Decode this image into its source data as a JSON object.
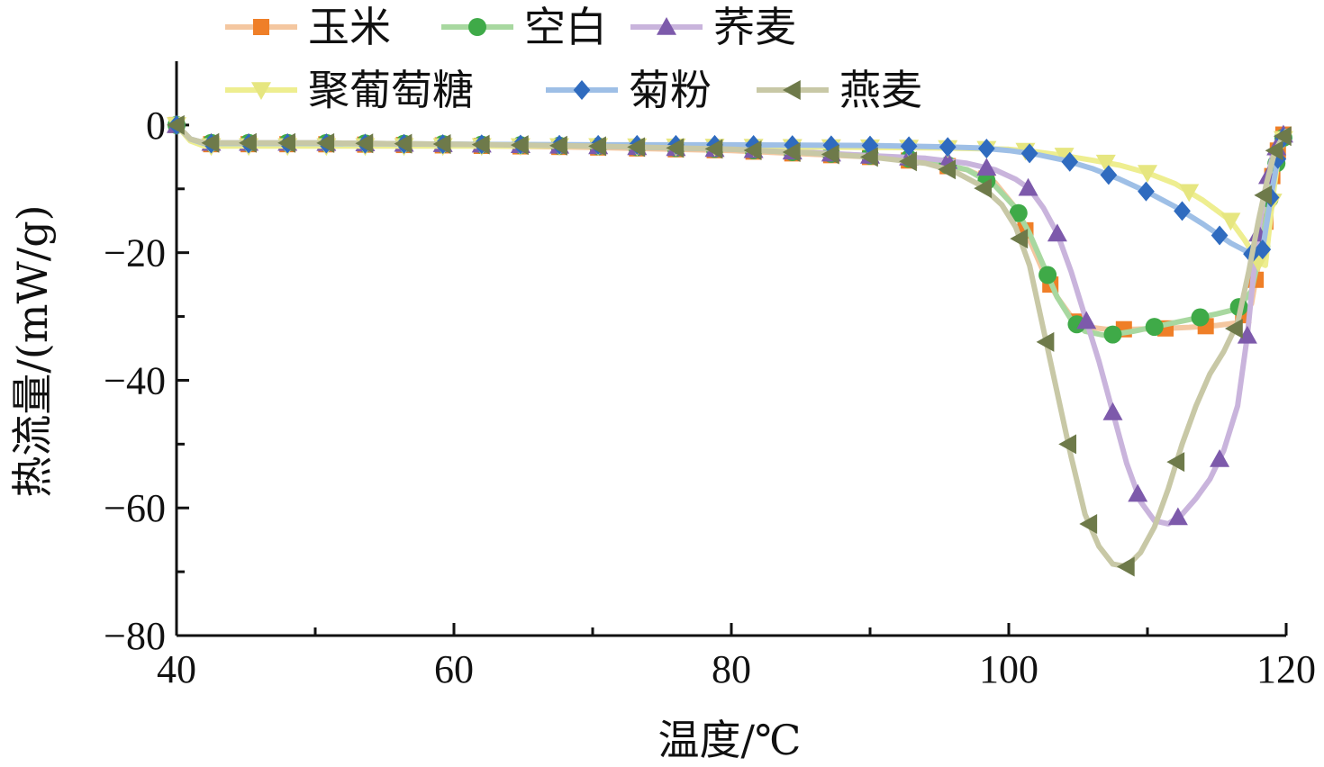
{
  "chart_data": {
    "type": "line",
    "xlabel": "温度/℃",
    "ylabel": "热流量/(mW/g)",
    "xlim": [
      40,
      120
    ],
    "ylim": [
      -80,
      10
    ],
    "xticks": [
      40,
      60,
      80,
      100,
      120
    ],
    "yticks": [
      0,
      -20,
      -40,
      -60,
      -80
    ],
    "legend_position": "top-left",
    "grid": false,
    "series": [
      {
        "name": "玉米",
        "color": "#f4c7a0",
        "marker_color": "#ef7f28",
        "marker": "square",
        "points": [
          [
            40,
            0
          ],
          [
            41,
            -2.2
          ],
          [
            42,
            -3
          ],
          [
            46,
            -3
          ],
          [
            50,
            -3
          ],
          [
            60,
            -3.2
          ],
          [
            70,
            -3.5
          ],
          [
            80,
            -4
          ],
          [
            85,
            -4.5
          ],
          [
            90,
            -5
          ],
          [
            94,
            -5.8
          ],
          [
            97,
            -7
          ],
          [
            99,
            -9
          ],
          [
            100.5,
            -13
          ],
          [
            101.5,
            -18
          ],
          [
            102.5,
            -23
          ],
          [
            103.5,
            -27
          ],
          [
            104.5,
            -30
          ],
          [
            105.5,
            -31.6
          ],
          [
            107,
            -32
          ],
          [
            109,
            -32
          ],
          [
            111,
            -31.9
          ],
          [
            113,
            -31.7
          ],
          [
            115,
            -31.4
          ],
          [
            116.5,
            -31
          ],
          [
            117.5,
            -28
          ],
          [
            118.3,
            -18
          ],
          [
            119,
            -8
          ],
          [
            119.6,
            -2
          ],
          [
            120,
            -1
          ]
        ],
        "marker_x": [
          40,
          42.5,
          45.2,
          48,
          50.8,
          53.6,
          56.4,
          59.2,
          62,
          64.8,
          67.6,
          70.4,
          73.2,
          76,
          78.8,
          81.6,
          84.4,
          87.2,
          90,
          92.8,
          95.6,
          98.4,
          101.2,
          103,
          105,
          108.3,
          111.3,
          114.2,
          116.9,
          117.8,
          118.5,
          119,
          119.4,
          119.8
        ]
      },
      {
        "name": "空白",
        "color": "#a8d8a0",
        "marker_color": "#3faa48",
        "marker": "circle",
        "points": [
          [
            40,
            0
          ],
          [
            41,
            -2.2
          ],
          [
            42,
            -2.8
          ],
          [
            46,
            -2.8
          ],
          [
            50,
            -2.8
          ],
          [
            60,
            -3
          ],
          [
            70,
            -3.3
          ],
          [
            80,
            -3.8
          ],
          [
            85,
            -4.3
          ],
          [
            90,
            -4.8
          ],
          [
            94,
            -5.5
          ],
          [
            97,
            -7
          ],
          [
            99,
            -9.5
          ],
          [
            100.5,
            -13
          ],
          [
            101.5,
            -17
          ],
          [
            102.5,
            -22
          ],
          [
            103.5,
            -27
          ],
          [
            104.5,
            -30.5
          ],
          [
            105.5,
            -32.3
          ],
          [
            107,
            -33
          ],
          [
            109,
            -32.3
          ],
          [
            111,
            -31.4
          ],
          [
            113,
            -30.5
          ],
          [
            115,
            -29.6
          ],
          [
            116.5,
            -28.8
          ],
          [
            117.5,
            -26
          ],
          [
            118.3,
            -18
          ],
          [
            119,
            -9
          ],
          [
            119.6,
            -3
          ],
          [
            120,
            -1
          ]
        ],
        "marker_x": [
          40,
          42.5,
          45.2,
          48,
          50.8,
          53.6,
          56.4,
          59.2,
          62,
          64.8,
          67.6,
          70.4,
          73.2,
          76,
          78.8,
          81.6,
          84.4,
          87.2,
          90,
          92.8,
          95.6,
          98.4,
          100.7,
          102.8,
          104.9,
          107.5,
          110.5,
          113.8,
          116.6,
          118.2,
          118.8,
          119.3,
          119.8
        ]
      },
      {
        "name": "荞麦",
        "color": "#c9b4dc",
        "marker_color": "#7d5aab",
        "marker": "triangle-up",
        "points": [
          [
            40,
            0
          ],
          [
            41,
            -2.2
          ],
          [
            42,
            -2.8
          ],
          [
            46,
            -2.8
          ],
          [
            50,
            -2.8
          ],
          [
            60,
            -3
          ],
          [
            70,
            -3.3
          ],
          [
            80,
            -3.8
          ],
          [
            85,
            -4.2
          ],
          [
            90,
            -4.8
          ],
          [
            94,
            -5.2
          ],
          [
            97,
            -6
          ],
          [
            99,
            -7
          ],
          [
            100.5,
            -8.5
          ],
          [
            101.5,
            -10
          ],
          [
            102.5,
            -13
          ],
          [
            103.5,
            -17
          ],
          [
            104.5,
            -23
          ],
          [
            105.5,
            -30
          ],
          [
            106.5,
            -37
          ],
          [
            107.5,
            -45
          ],
          [
            108.5,
            -53
          ],
          [
            109.5,
            -59
          ],
          [
            110.5,
            -62
          ],
          [
            111.5,
            -62.5
          ],
          [
            112.5,
            -61
          ],
          [
            113.5,
            -58.5
          ],
          [
            114.5,
            -55.5
          ],
          [
            115.5,
            -51
          ],
          [
            116.5,
            -44
          ],
          [
            117.2,
            -33
          ],
          [
            117.8,
            -20
          ],
          [
            118.4,
            -11
          ],
          [
            119,
            -5
          ],
          [
            119.6,
            -2
          ],
          [
            120,
            -1
          ]
        ],
        "marker_x": [
          40,
          42.5,
          45.2,
          48,
          50.8,
          53.6,
          56.4,
          59.2,
          62,
          64.8,
          67.6,
          70.4,
          73.2,
          76,
          78.8,
          81.6,
          84.4,
          87.2,
          90,
          92.8,
          95.6,
          98.4,
          101.4,
          103.5,
          105.6,
          107.5,
          109.3,
          112.2,
          115.2,
          117.2,
          118,
          118.7,
          119.3,
          119.8
        ]
      },
      {
        "name": "聚葡萄糖",
        "color": "#eeee90",
        "marker_color": "#e6e680",
        "marker": "triangle-down",
        "points": [
          [
            40,
            0
          ],
          [
            41,
            -2.5
          ],
          [
            42,
            -3.3
          ],
          [
            46,
            -3.3
          ],
          [
            50,
            -3.3
          ],
          [
            60,
            -3.3
          ],
          [
            70,
            -3.3
          ],
          [
            80,
            -3.4
          ],
          [
            90,
            -3.5
          ],
          [
            95,
            -3.6
          ],
          [
            100,
            -3.8
          ],
          [
            102,
            -4.2
          ],
          [
            104,
            -4.8
          ],
          [
            106,
            -5.5
          ],
          [
            108,
            -6.3
          ],
          [
            110,
            -7.5
          ],
          [
            112,
            -9.2
          ],
          [
            114,
            -11.8
          ],
          [
            116,
            -15
          ],
          [
            117,
            -18
          ],
          [
            118,
            -21.5
          ],
          [
            118.5,
            -22
          ],
          [
            119,
            -12
          ],
          [
            119.5,
            -4
          ],
          [
            120,
            -1
          ]
        ],
        "marker_x": [
          40,
          42.5,
          45.2,
          48,
          50.8,
          53.6,
          56.4,
          59.2,
          62,
          64.8,
          67.6,
          70.4,
          73.2,
          76,
          78.8,
          81.6,
          84.4,
          87.2,
          90,
          92.8,
          95.6,
          98.4,
          101.2,
          104,
          107,
          110,
          113,
          116,
          118,
          119,
          119.8
        ]
      },
      {
        "name": "菊粉",
        "color": "#9ebfe6",
        "marker_color": "#2f6bbf",
        "marker": "diamond",
        "points": [
          [
            40,
            0
          ],
          [
            41,
            -2.2
          ],
          [
            42,
            -2.9
          ],
          [
            46,
            -2.9
          ],
          [
            50,
            -2.9
          ],
          [
            60,
            -3
          ],
          [
            70,
            -3.1
          ],
          [
            80,
            -3.1
          ],
          [
            90,
            -3.2
          ],
          [
            95,
            -3.4
          ],
          [
            98,
            -3.6
          ],
          [
            100,
            -4
          ],
          [
            102,
            -4.6
          ],
          [
            104,
            -5.5
          ],
          [
            106,
            -6.8
          ],
          [
            108,
            -8.5
          ],
          [
            110,
            -10.5
          ],
          [
            112,
            -12.8
          ],
          [
            114,
            -15.5
          ],
          [
            116,
            -18.5
          ],
          [
            117.5,
            -20.2
          ],
          [
            118.3,
            -19.5
          ],
          [
            119,
            -10
          ],
          [
            119.6,
            -3
          ],
          [
            120,
            -1
          ]
        ],
        "marker_x": [
          40,
          42.5,
          45.2,
          48,
          50.8,
          53.6,
          56.4,
          59.2,
          62,
          64.8,
          67.6,
          70.4,
          73.2,
          76,
          78.8,
          81.6,
          84.4,
          87.2,
          90,
          92.8,
          95.6,
          98.4,
          101.5,
          104.4,
          107.2,
          109.9,
          112.5,
          115.2,
          117.5,
          118.3,
          118.9,
          119.4,
          119.8
        ]
      },
      {
        "name": "燕麦",
        "color": "#c8c8a6",
        "marker_color": "#6e7a4a",
        "marker": "triangle-left",
        "points": [
          [
            40,
            0
          ],
          [
            41,
            -2.2
          ],
          [
            42,
            -2.8
          ],
          [
            46,
            -2.8
          ],
          [
            50,
            -2.8
          ],
          [
            60,
            -3
          ],
          [
            70,
            -3.3
          ],
          [
            80,
            -3.8
          ],
          [
            85,
            -4.3
          ],
          [
            90,
            -5
          ],
          [
            94,
            -6
          ],
          [
            96,
            -7.2
          ],
          [
            98,
            -9.5
          ],
          [
            99.5,
            -12.5
          ],
          [
            100.5,
            -16
          ],
          [
            101.5,
            -22
          ],
          [
            102.5,
            -32
          ],
          [
            103.5,
            -42
          ],
          [
            104.5,
            -52
          ],
          [
            105.5,
            -61
          ],
          [
            106.5,
            -66
          ],
          [
            107.5,
            -68.8
          ],
          [
            108.5,
            -69.2
          ],
          [
            109.5,
            -67
          ],
          [
            110.5,
            -63
          ],
          [
            111.5,
            -57
          ],
          [
            112.5,
            -50
          ],
          [
            113.5,
            -44
          ],
          [
            114.5,
            -39
          ],
          [
            115.5,
            -35.5
          ],
          [
            116.5,
            -31
          ],
          [
            117.3,
            -23
          ],
          [
            118,
            -15
          ],
          [
            118.6,
            -9
          ],
          [
            119.2,
            -4
          ],
          [
            120,
            -1
          ]
        ],
        "marker_x": [
          40,
          42.5,
          45.2,
          48,
          50.8,
          53.6,
          56.4,
          59.2,
          62,
          64.8,
          67.6,
          70.4,
          73.2,
          76,
          78.8,
          81.6,
          84.4,
          87.2,
          90,
          92.8,
          95.6,
          98.2,
          100.8,
          102.7,
          104.3,
          105.8,
          108.5,
          112.1,
          116.3,
          118.4,
          119.2,
          119.8
        ]
      }
    ]
  }
}
